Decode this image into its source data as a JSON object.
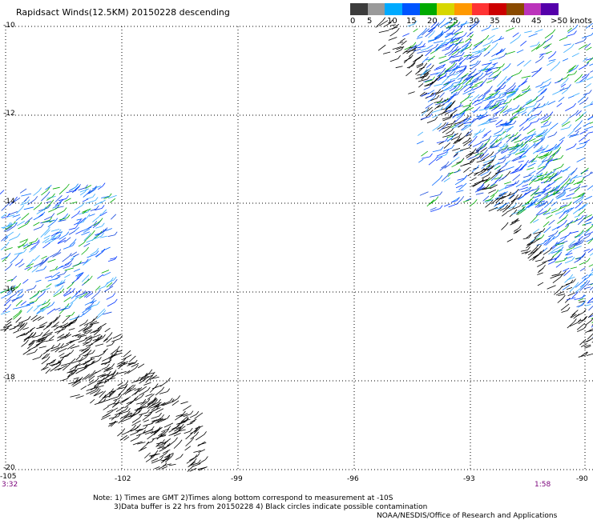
{
  "title": "Rapidsact Winds(12.5KM) 20150228 descending",
  "legend": {
    "colors": [
      "#3c3c3c",
      "#9a9a9a",
      "#00aaff",
      "#0055ff",
      "#00aa00",
      "#d7d700",
      "#ff9900",
      "#ff3333",
      "#cc0000",
      "#8a4a00",
      "#bb33bb",
      "#5500aa"
    ],
    "labels": [
      "0",
      "5",
      "10",
      "15",
      "20",
      "25",
      "30",
      "35",
      "40",
      "45",
      ">50 knots"
    ]
  },
  "axes": {
    "lat_labels": [
      "-10",
      "-12",
      "-14",
      "-16",
      "-18",
      "-20"
    ],
    "lon_labels": [
      "-105",
      "-102",
      "-99",
      "-96",
      "-93",
      "-90"
    ]
  },
  "times": {
    "left": "3:32",
    "right": "1:58"
  },
  "notes": {
    "line1": "Note: 1) Times are GMT 2)Times along bottom correspond to measurement at -10S",
    "line2": "3)Data buffer is 22 hrs from 20150228 4) Black circles indicate possible contamination"
  },
  "credit": "NOAA/NESDIS/Office of Research and Applications"
}
